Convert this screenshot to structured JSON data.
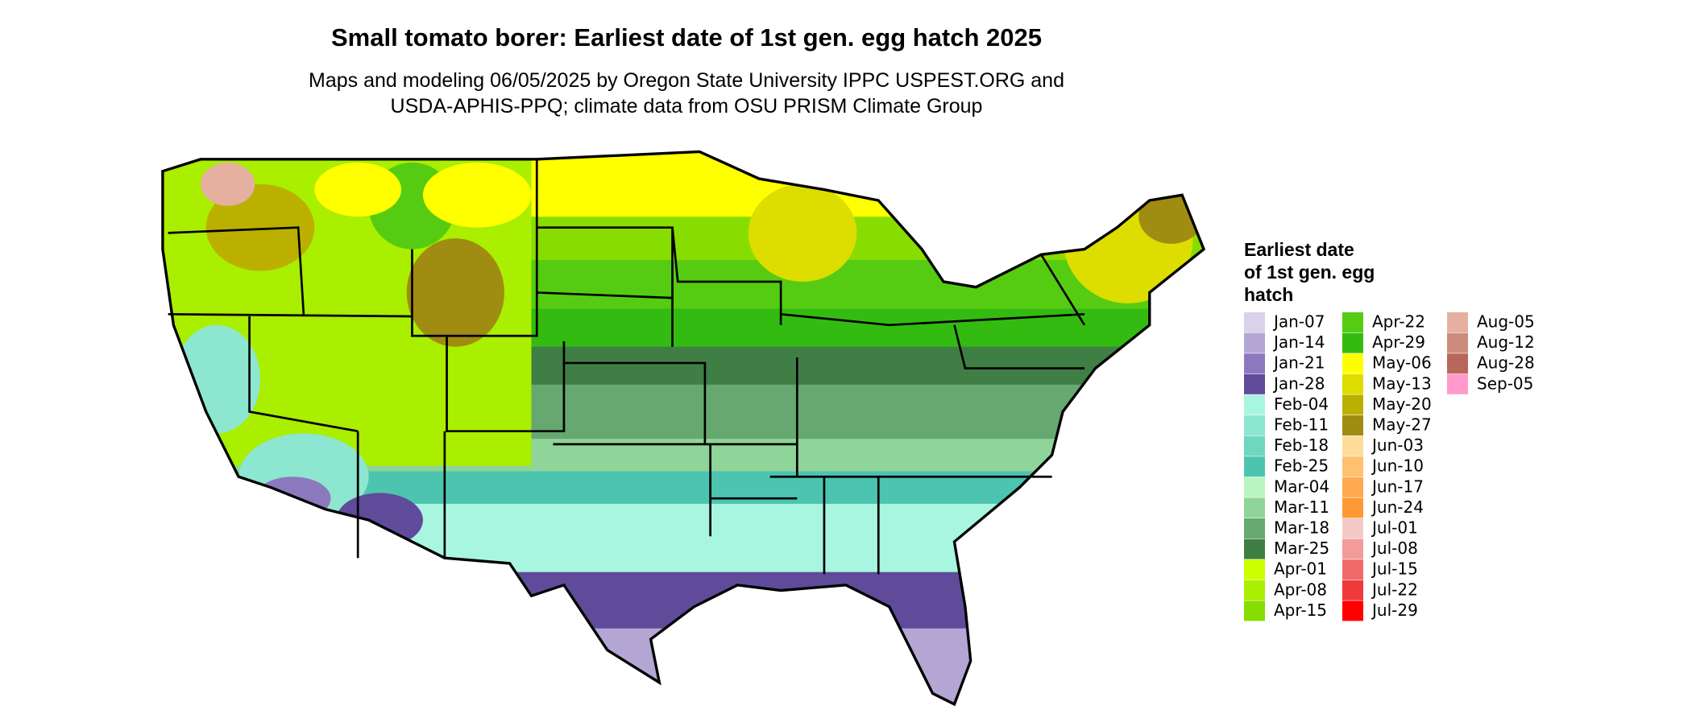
{
  "header": {
    "title": "Small tomato borer: Earliest date of 1st gen. egg hatch 2025",
    "subtitle": [
      "Maps and modeling 06/05/2025 by Oregon State University IPPC USPEST.ORG and",
      "USDA-APHIS-PPQ; climate data from OSU PRISM Climate Group"
    ]
  },
  "legend": {
    "title": [
      "Earliest date",
      "of 1st gen. egg",
      "hatch"
    ],
    "items": [
      {
        "label": "Jan-07",
        "color": "#d9d2ea"
      },
      {
        "label": "Jan-14",
        "color": "#b3a6d4"
      },
      {
        "label": "Jan-21",
        "color": "#8c79bd"
      },
      {
        "label": "Jan-28",
        "color": "#5f4b99"
      },
      {
        "label": "Feb-04",
        "color": "#a8f5e0"
      },
      {
        "label": "Feb-11",
        "color": "#8de6d0"
      },
      {
        "label": "Feb-18",
        "color": "#6fd6c0"
      },
      {
        "label": "Feb-25",
        "color": "#4dc4b0"
      },
      {
        "label": "Mar-04",
        "color": "#b8f5c0"
      },
      {
        "label": "Mar-11",
        "color": "#8fd498"
      },
      {
        "label": "Mar-18",
        "color": "#66a870"
      },
      {
        "label": "Mar-25",
        "color": "#3f7f45"
      },
      {
        "label": "Apr-01",
        "color": "#ccff00"
      },
      {
        "label": "Apr-08",
        "color": "#aaee00"
      },
      {
        "label": "Apr-15",
        "color": "#88dd00"
      },
      {
        "label": "Apr-22",
        "color": "#55cc11"
      },
      {
        "label": "Apr-29",
        "color": "#33bb11"
      },
      {
        "label": "May-06",
        "color": "#ffff00"
      },
      {
        "label": "May-13",
        "color": "#dddd00"
      },
      {
        "label": "May-20",
        "color": "#bbb000"
      },
      {
        "label": "May-27",
        "color": "#a08c10"
      },
      {
        "label": "Jun-03",
        "color": "#ffdd99"
      },
      {
        "label": "Jun-10",
        "color": "#ffc070"
      },
      {
        "label": "Jun-17",
        "color": "#ffaa50"
      },
      {
        "label": "Jun-24",
        "color": "#ff9933"
      },
      {
        "label": "Jul-01",
        "color": "#f5c8c8"
      },
      {
        "label": "Jul-08",
        "color": "#f59a9a"
      },
      {
        "label": "Jul-15",
        "color": "#f06a6a"
      },
      {
        "label": "Jul-22",
        "color": "#f03a3a"
      },
      {
        "label": "Jul-29",
        "color": "#ff0000"
      },
      {
        "label": "Aug-05",
        "color": "#e6b0a0"
      },
      {
        "label": "Aug-12",
        "color": "#cc8c7c"
      },
      {
        "label": "Aug-28",
        "color": "#b8685a"
      },
      {
        "label": "Sep-05",
        "color": "#ff99cc"
      }
    ]
  }
}
